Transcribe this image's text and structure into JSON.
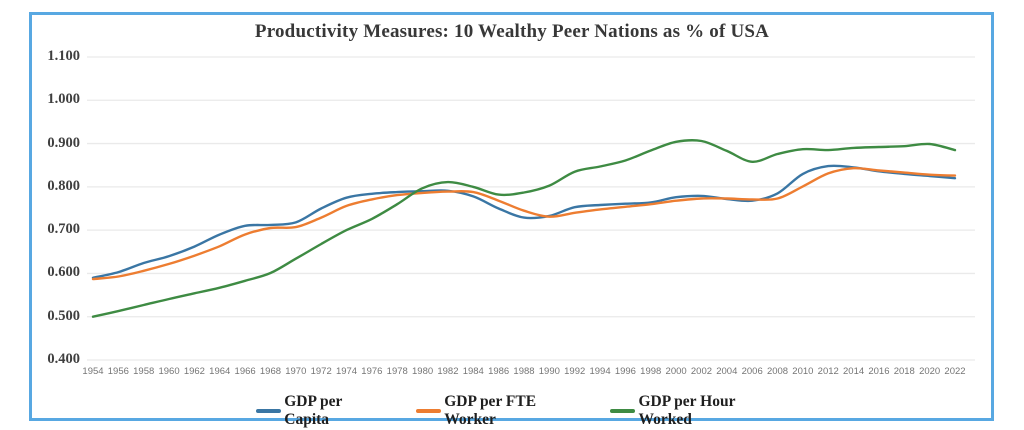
{
  "frame": {
    "border_color": "#58A8E2",
    "background_color": "#FFFFFF",
    "gridline_color": "#EAEAEA"
  },
  "chart_data": {
    "type": "line",
    "title": "Productivity Measures: 10 Wealthy Peer Nations as % of USA",
    "xlabel": "",
    "ylabel": "",
    "x": [
      1954,
      1956,
      1958,
      1960,
      1962,
      1964,
      1966,
      1968,
      1970,
      1972,
      1974,
      1976,
      1978,
      1980,
      1982,
      1984,
      1986,
      1988,
      1990,
      1992,
      1994,
      1996,
      1998,
      2000,
      2002,
      2004,
      2006,
      2008,
      2010,
      2012,
      2014,
      2016,
      2018,
      2020,
      2022
    ],
    "series": [
      {
        "name": "GDP per Capita",
        "color": "#3A76A4",
        "values": [
          0.59,
          0.603,
          0.624,
          0.64,
          0.662,
          0.69,
          0.71,
          0.712,
          0.718,
          0.75,
          0.775,
          0.784,
          0.788,
          0.79,
          0.791,
          0.778,
          0.75,
          0.729,
          0.733,
          0.753,
          0.758,
          0.761,
          0.764,
          0.776,
          0.779,
          0.772,
          0.768,
          0.785,
          0.83,
          0.848,
          0.845,
          0.836,
          0.83,
          0.825,
          0.82
        ]
      },
      {
        "name": "GDP per FTE Worker",
        "color": "#ED7D31",
        "values": [
          0.587,
          0.593,
          0.606,
          0.622,
          0.641,
          0.663,
          0.69,
          0.705,
          0.707,
          0.729,
          0.756,
          0.771,
          0.781,
          0.786,
          0.789,
          0.788,
          0.768,
          0.745,
          0.731,
          0.74,
          0.748,
          0.754,
          0.76,
          0.768,
          0.773,
          0.773,
          0.771,
          0.773,
          0.801,
          0.831,
          0.843,
          0.838,
          0.833,
          0.828,
          0.826
        ]
      },
      {
        "name": "GDP per Hour Worked",
        "color": "#3E8B43",
        "values": [
          0.5,
          0.513,
          0.527,
          0.541,
          0.554,
          0.567,
          0.583,
          0.601,
          0.634,
          0.668,
          0.7,
          0.726,
          0.76,
          0.797,
          0.811,
          0.8,
          0.782,
          0.787,
          0.803,
          0.835,
          0.847,
          0.861,
          0.884,
          0.904,
          0.906,
          0.883,
          0.858,
          0.876,
          0.887,
          0.885,
          0.89,
          0.892,
          0.894,
          0.899,
          0.885
        ]
      }
    ],
    "ylim": [
      0.4,
      1.1
    ],
    "ytick_labels": [
      "1.100",
      "1.000",
      "0.900",
      "0.800",
      "0.700",
      "0.600",
      "0.500",
      "0.400"
    ],
    "grid": true,
    "legend_position": "bottom",
    "line_smoothing": true
  }
}
